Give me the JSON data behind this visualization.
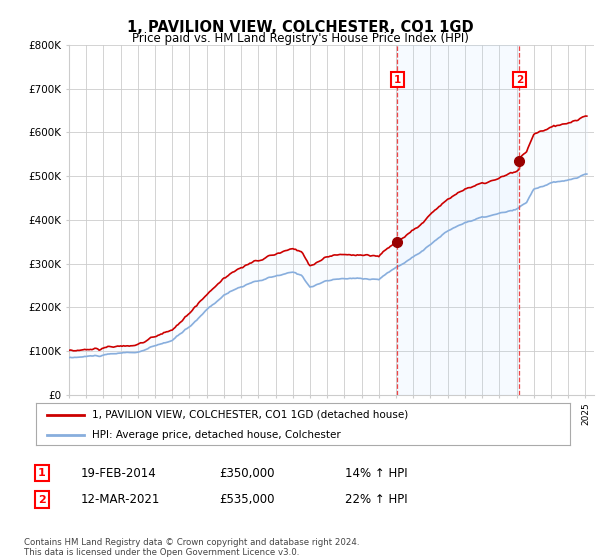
{
  "title": "1, PAVILION VIEW, COLCHESTER, CO1 1GD",
  "subtitle": "Price paid vs. HM Land Registry's House Price Index (HPI)",
  "ylim": [
    0,
    800000
  ],
  "sale1_price": 350000,
  "sale1_label": "19-FEB-2014",
  "sale1_hpi_pct": "14% ↑ HPI",
  "sale2_price": 535000,
  "sale2_label": "12-MAR-2021",
  "sale2_hpi_pct": "22% ↑ HPI",
  "property_line_color": "#cc0000",
  "hpi_line_color": "#88aedd",
  "hpi_fill_color": "#ddeeff",
  "vline_color": "#ee3333",
  "legend_label1": "1, PAVILION VIEW, COLCHESTER, CO1 1GD (detached house)",
  "legend_label2": "HPI: Average price, detached house, Colchester",
  "footer": "Contains HM Land Registry data © Crown copyright and database right 2024.\nThis data is licensed under the Open Government Licence v3.0.",
  "background_color": "#ffffff",
  "plot_bg_color": "#ffffff",
  "grid_color": "#cccccc"
}
